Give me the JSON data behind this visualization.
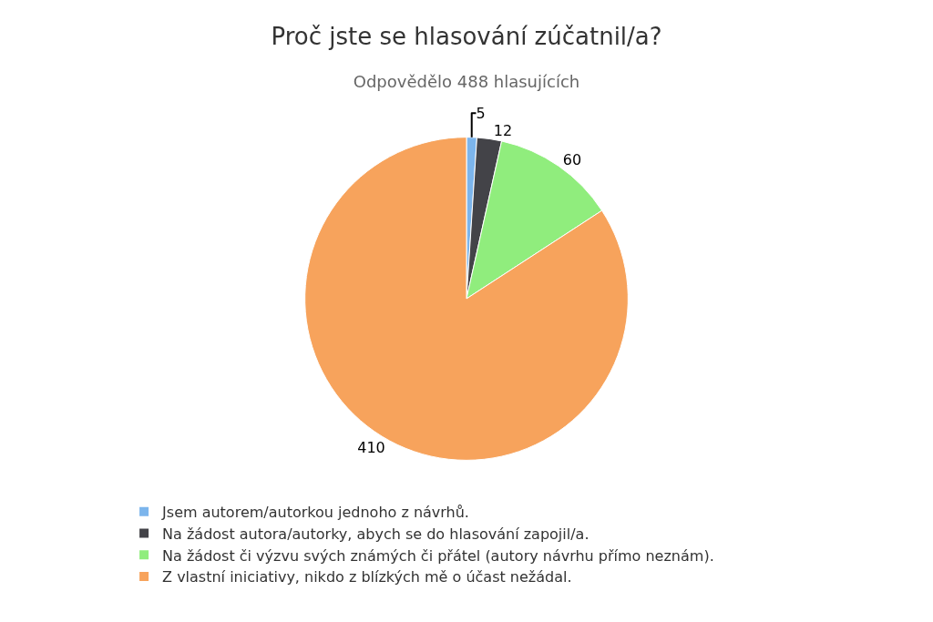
{
  "chart_data": {
    "type": "pie",
    "title": "Proč jste se hlasování zúčatnil/a?",
    "subtitle": "Odpovědělo 488 hlasujících",
    "categories": [
      "Jsem autorem/autorkou jednoho z návrhů.",
      "Na žádost autora/autorky, abych se do hlasování zapojil/a.",
      "Na žádost či výzvu svých známých či přátel (autory návrhu přímo neznám).",
      "Z vlastní iniciativy, nikdo z blízkých mě o účast nežádal."
    ],
    "values": [
      5,
      12,
      60,
      410
    ],
    "colors": [
      "#7cb5ec",
      "#434348",
      "#90ed7d",
      "#f7a35c"
    ],
    "data_labels": true,
    "legend": "bottom"
  }
}
